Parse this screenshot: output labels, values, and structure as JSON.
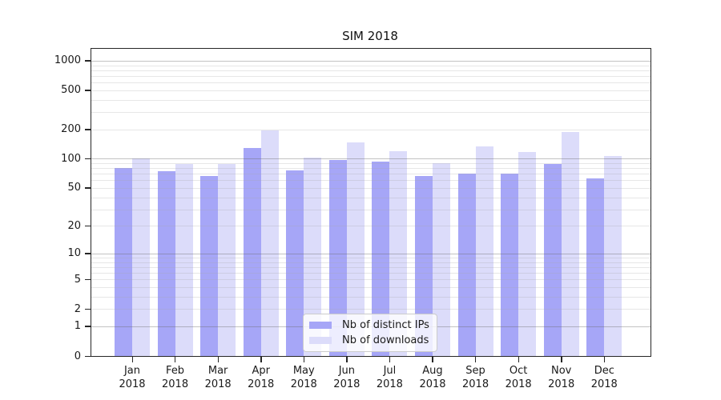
{
  "title": "SIM 2018",
  "chart_data": {
    "type": "bar",
    "title": "SIM 2018",
    "xlabel": "",
    "ylabel": "",
    "scale": "log1p",
    "grid": true,
    "legend_position": "lower center",
    "year_label": "2018",
    "categories": [
      "Jan",
      "Feb",
      "Mar",
      "Apr",
      "May",
      "Jun",
      "Jul",
      "Aug",
      "Sep",
      "Oct",
      "Nov",
      "Dec"
    ],
    "series": [
      {
        "name": "Nb of distinct IPs",
        "color": "#a6a6f7",
        "values": [
          80,
          75,
          67,
          130,
          76,
          98,
          94,
          66,
          71,
          71,
          88,
          63
        ]
      },
      {
        "name": "Nb of downloads",
        "color": "#dcdcfa",
        "values": [
          100,
          88,
          88,
          195,
          102,
          148,
          120,
          90,
          133,
          117,
          187,
          106
        ]
      }
    ],
    "y_ticks": [
      0,
      1,
      2,
      5,
      10,
      20,
      50,
      100,
      200,
      500,
      1000
    ],
    "y_minor_gridlines": [
      2,
      3,
      4,
      5,
      6,
      7,
      8,
      9,
      20,
      30,
      40,
      50,
      60,
      70,
      80,
      90,
      200,
      300,
      400,
      500,
      600,
      700,
      800,
      900
    ],
    "y_major_gridlines": [
      1,
      10,
      100,
      1000
    ],
    "ylim": [
      0,
      1280
    ]
  },
  "legend": {
    "items": [
      {
        "label": "Nb of distinct IPs"
      },
      {
        "label": "Nb of downloads"
      }
    ]
  }
}
